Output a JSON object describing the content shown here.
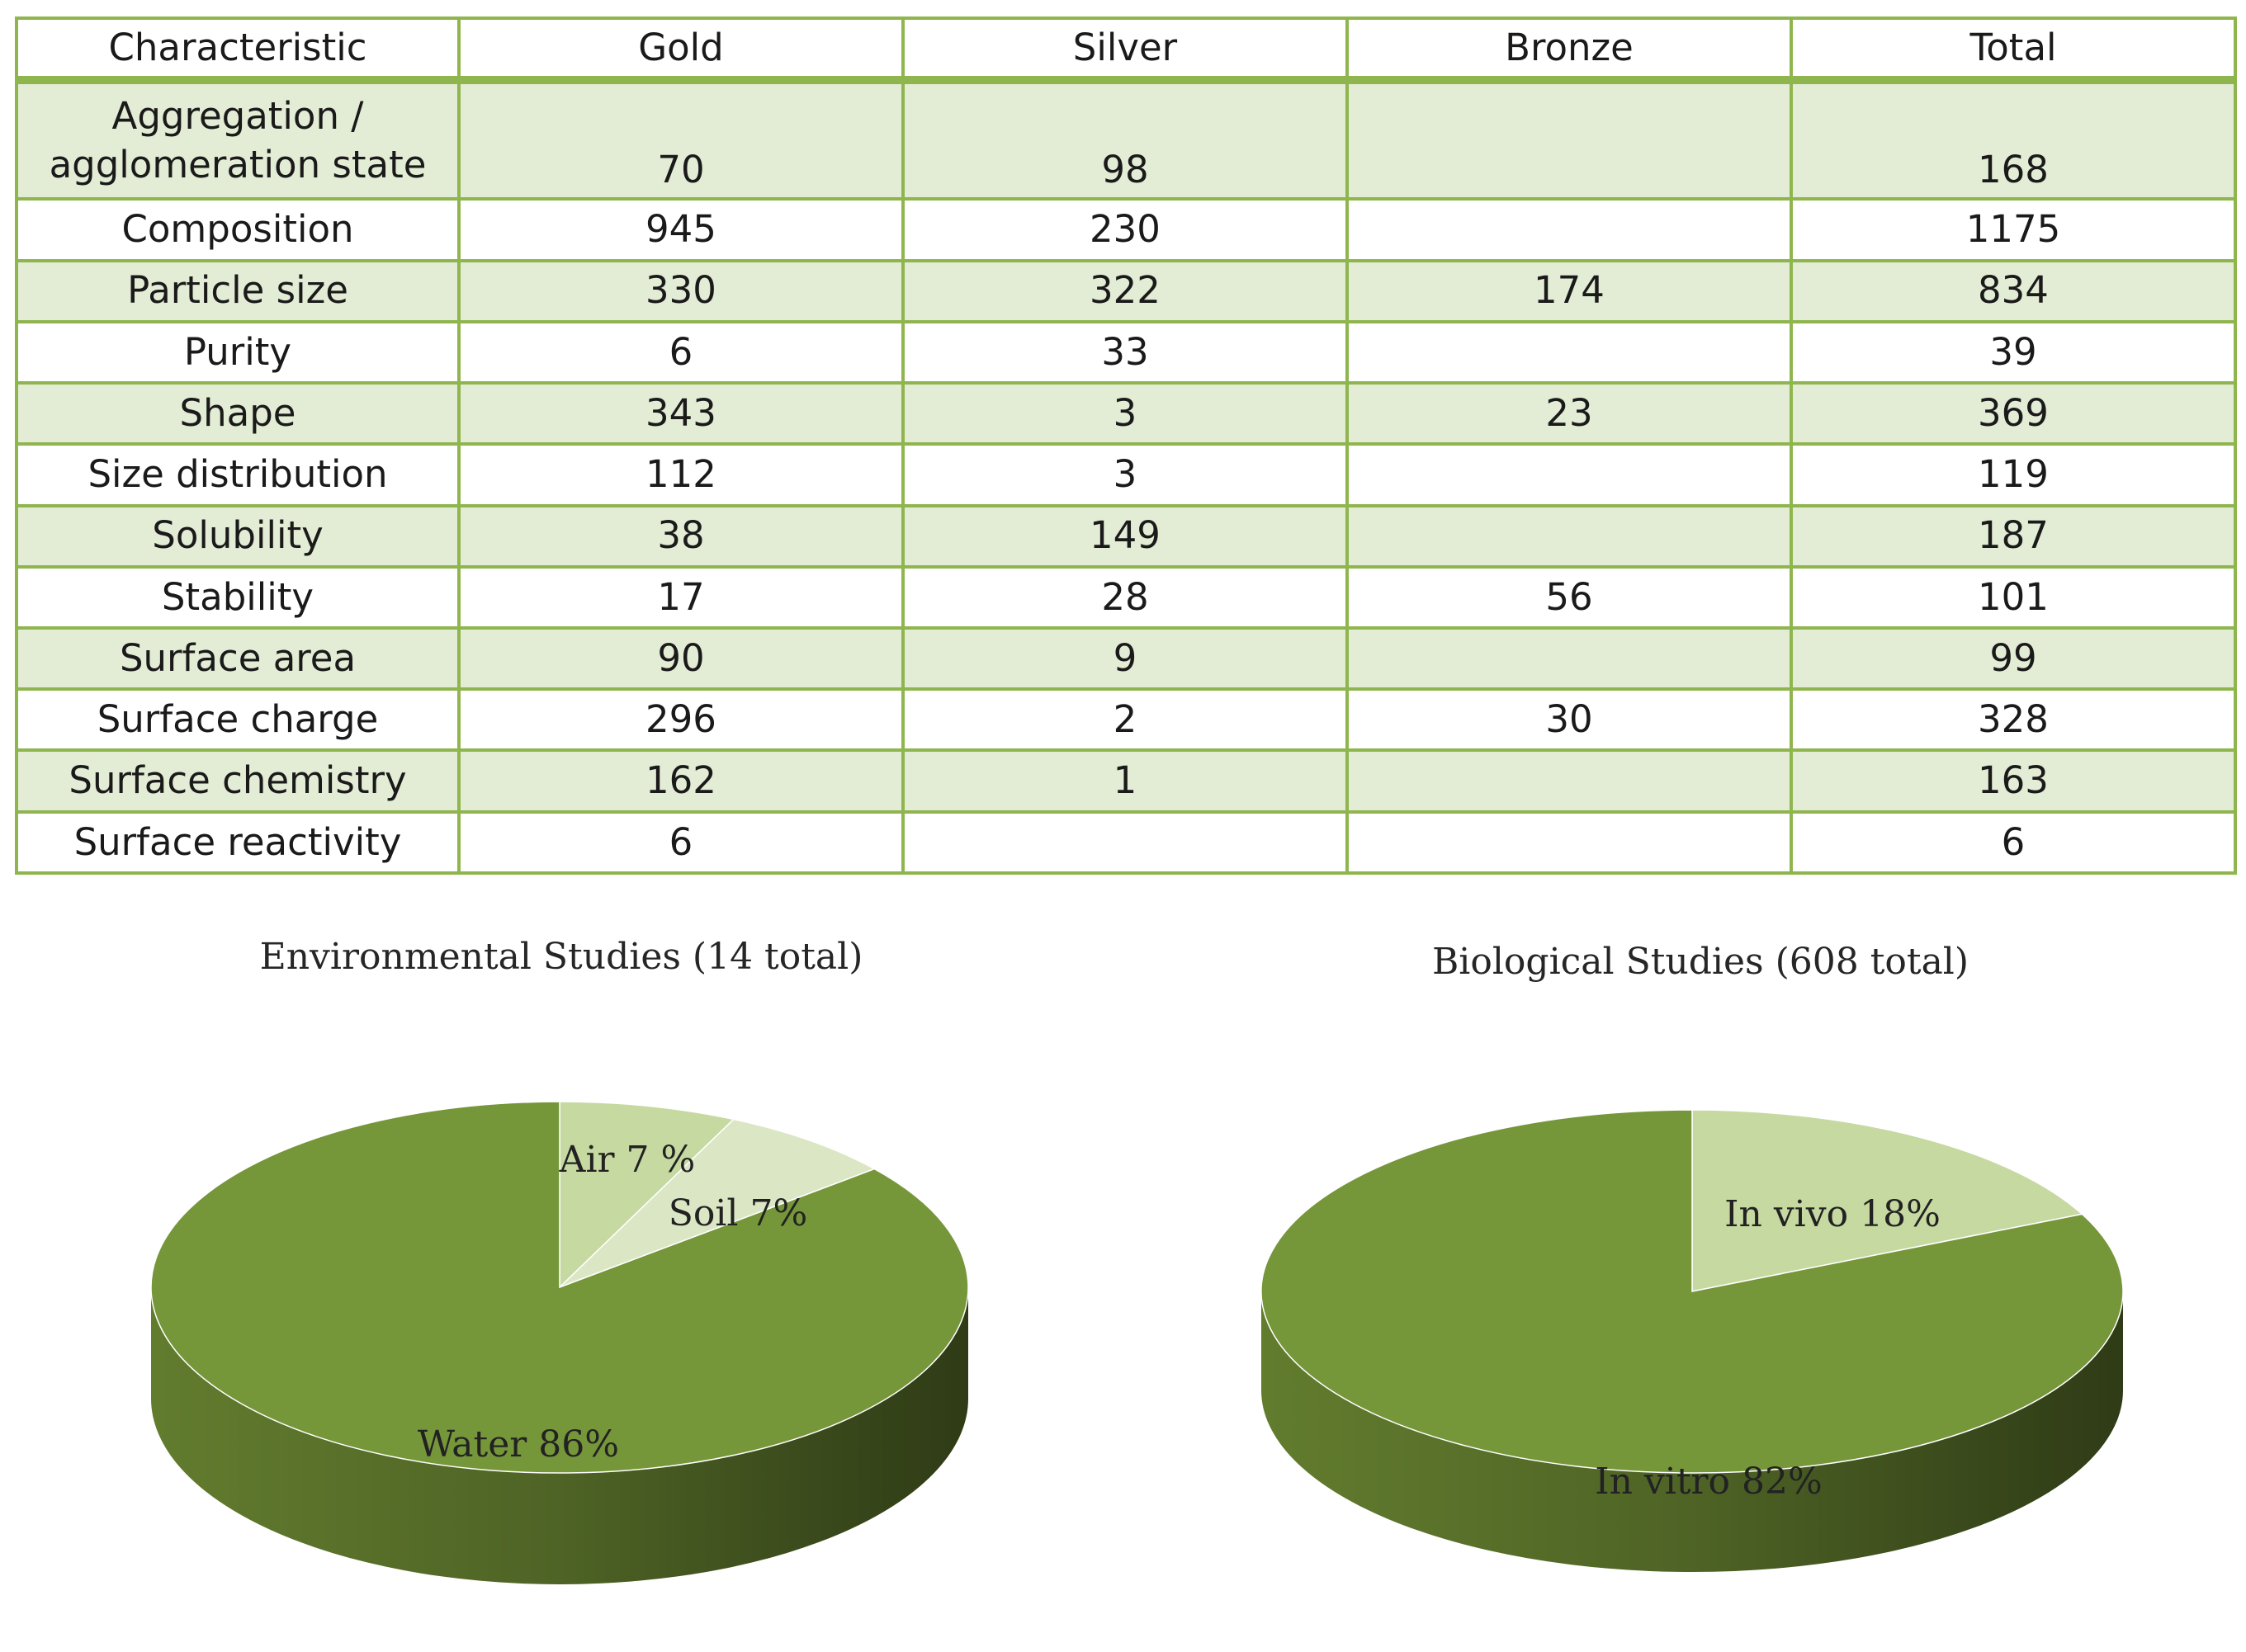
{
  "table": {
    "headers": [
      "Characteristic",
      "Gold",
      "Silver",
      "Bronze",
      "Total"
    ],
    "rows": [
      {
        "characteristic": "Aggregation / agglomeration state",
        "line1": "Aggregation /",
        "line2": "agglomeration state",
        "gold": "70",
        "silver": "98",
        "bronze": "",
        "total": "168"
      },
      {
        "characteristic": "Composition",
        "gold": "945",
        "silver": "230",
        "bronze": "",
        "total": "1175"
      },
      {
        "characteristic": "Particle size",
        "gold": "330",
        "silver": "322",
        "bronze": "174",
        "total": "834"
      },
      {
        "characteristic": "Purity",
        "gold": "6",
        "silver": "33",
        "bronze": "",
        "total": "39"
      },
      {
        "characteristic": "Shape",
        "gold": "343",
        "silver": "3",
        "bronze": "23",
        "total": "369"
      },
      {
        "characteristic": "Size distribution",
        "gold": "112",
        "silver": "3",
        "bronze": "",
        "total": "119"
      },
      {
        "characteristic": "Solubility",
        "gold": "38",
        "silver": "149",
        "bronze": "",
        "total": "187"
      },
      {
        "characteristic": "Stability",
        "gold": "17",
        "silver": "28",
        "bronze": "56",
        "total": "101"
      },
      {
        "characteristic": "Surface area",
        "gold": "90",
        "silver": "9",
        "bronze": "",
        "total": "99"
      },
      {
        "characteristic": "Surface charge",
        "gold": "296",
        "silver": "2",
        "bronze": "30",
        "total": "328"
      },
      {
        "characteristic": "Surface chemistry",
        "gold": "162",
        "silver": "1",
        "bronze": "",
        "total": "163"
      },
      {
        "characteristic": "Surface reactivity",
        "gold": "6",
        "silver": "",
        "bronze": "",
        "total": "6"
      }
    ]
  },
  "colors": {
    "table_border": "#8fb64e",
    "table_band": "#e3ecd4",
    "pie_dark": "#76963a",
    "pie_light": "#c6d9a0",
    "pie_side_dark": "#4e6325",
    "pie_side_light": "#8ba35f"
  },
  "chart_data": [
    {
      "type": "pie",
      "title": "Environmental Studies (14 total)",
      "labels": [
        "Air 7 %",
        "Soil 7%",
        "Water 86%"
      ],
      "categories": [
        "Air",
        "Soil",
        "Water"
      ],
      "values": [
        7,
        7,
        86
      ],
      "colors": [
        "#c6d9a0",
        "#dbe7c4",
        "#76963a"
      ],
      "style": "3d"
    },
    {
      "type": "pie",
      "title": "Biological Studies (608 total)",
      "labels": [
        "In vivo 18%",
        "In vitro 82%"
      ],
      "categories": [
        "In vivo",
        "In vitro"
      ],
      "values": [
        18,
        82
      ],
      "colors": [
        "#c6d9a0",
        "#76963a"
      ],
      "style": "3d"
    }
  ]
}
